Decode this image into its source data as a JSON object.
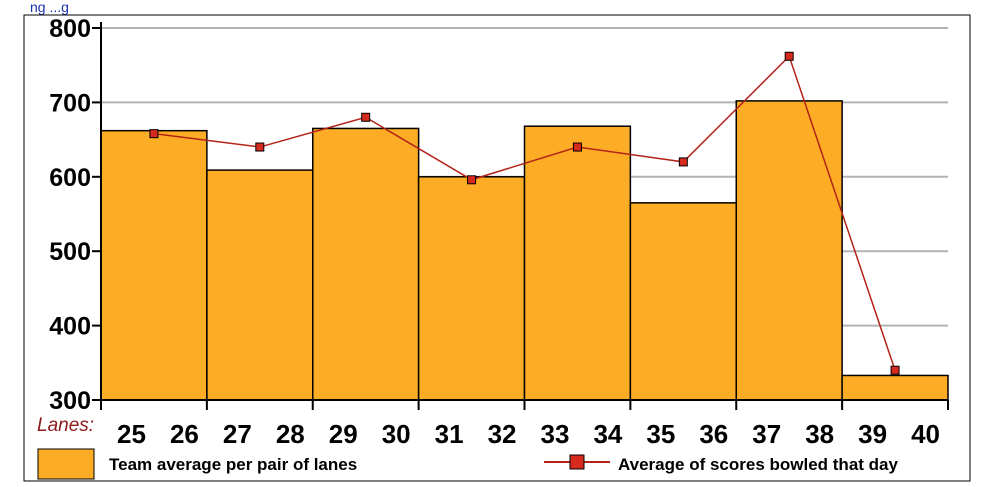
{
  "top_text": "ng ...g",
  "colors": {
    "bar_fill": "#fdac25",
    "bar_stroke": "#000000",
    "line": "#b32318",
    "marker_fill": "#d72a1e",
    "grid": "#b3b3b3",
    "axis": "#000000"
  },
  "chart_data": {
    "type": "bar",
    "x_prefix_label": "Lanes:",
    "x_tick_labels": [
      "25",
      "26",
      "27",
      "28",
      "29",
      "30",
      "31",
      "32",
      "33",
      "34",
      "35",
      "36",
      "37",
      "38",
      "39",
      "40"
    ],
    "ylim": [
      300,
      800
    ],
    "yticks": [
      300,
      400,
      500,
      600,
      700,
      800
    ],
    "grid": true,
    "legend_placement": "bottom",
    "series": [
      {
        "name": "Team average per pair of lanes",
        "type": "bar",
        "categories": [
          "25-26",
          "27-28",
          "29-30",
          "31-32",
          "33-34",
          "35-36",
          "37-38",
          "39-40"
        ],
        "values": [
          662,
          609,
          665,
          600,
          668,
          565,
          702,
          333
        ]
      },
      {
        "name": "Average of scores bowled that day",
        "type": "line",
        "categories": [
          "25-26",
          "27-28",
          "29-30",
          "31-32",
          "33-34",
          "35-36",
          "37-38",
          "39-40"
        ],
        "values": [
          658,
          640,
          680,
          596,
          640,
          620,
          762,
          340
        ]
      }
    ]
  }
}
